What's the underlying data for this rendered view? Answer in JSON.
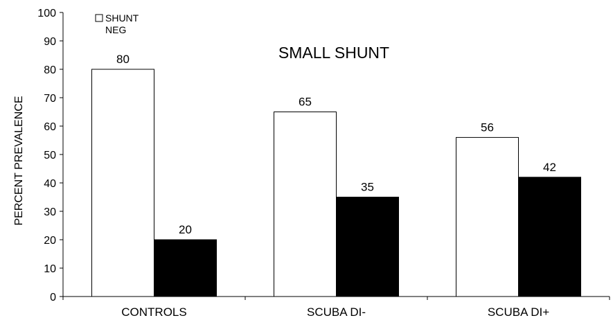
{
  "chart_data": {
    "type": "bar",
    "title": "SMALL  SHUNT",
    "ylabel": "PERCENT PREVALENCE",
    "xlabel": "",
    "ylim": [
      0,
      100
    ],
    "yticks": [
      0,
      10,
      20,
      30,
      40,
      50,
      60,
      70,
      80,
      90,
      100
    ],
    "categories": [
      "CONTROLS",
      "SCUBA DI-",
      "SCUBA DI+"
    ],
    "series": [
      {
        "name": "SHUNT NEG",
        "values": [
          80,
          65,
          56
        ],
        "color": "#ffffff"
      },
      {
        "values": [
          20,
          35,
          42
        ],
        "color": "#000000"
      }
    ],
    "legend": {
      "placement": "top-left",
      "line1": "SHUNT",
      "line2": "NEG"
    },
    "grid": false
  }
}
